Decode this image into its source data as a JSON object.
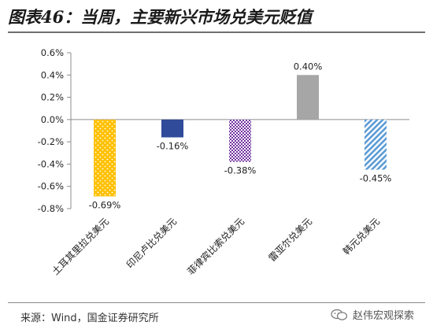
{
  "title": "图表46：当周，主要新兴市场兑美元贬值",
  "source": "来源：Wind，国金证券研究所",
  "watermark": "赵伟宏观探索",
  "colors": {
    "bar1": "#FFC000",
    "bar2": "#2F4B9A",
    "bar3": "#7030A0",
    "bar4": "#A6A6A6",
    "bar5": "#5B9BD5"
  },
  "chart_data": {
    "type": "bar",
    "title": "当周，主要新兴市场兑美元贬值",
    "xlabel": "",
    "ylabel": "",
    "ylim": [
      -0.8,
      0.6
    ],
    "yticks": [
      "0.6%",
      "0.4%",
      "0.2%",
      "0.0%",
      "-0.2%",
      "-0.4%",
      "-0.6%",
      "-0.8%"
    ],
    "ytick_values": [
      0.6,
      0.4,
      0.2,
      0.0,
      -0.2,
      -0.4,
      -0.6,
      -0.8
    ],
    "categories": [
      "土耳其里拉兑美元",
      "印尼卢比兑美元",
      "菲律宾比索兑美元",
      "雷亚尔兑美元",
      "韩元兑美元"
    ],
    "values": [
      -0.69,
      -0.16,
      -0.38,
      0.4,
      -0.45
    ],
    "data_labels": [
      "-0.69%",
      "-0.16%",
      "-0.38%",
      "0.40%",
      "-0.45%"
    ],
    "patterns": [
      "dots-on-yellow",
      "solid",
      "dots-purple",
      "solid-gray",
      "diagonal-blue"
    ],
    "grid": false,
    "legend": "none"
  }
}
